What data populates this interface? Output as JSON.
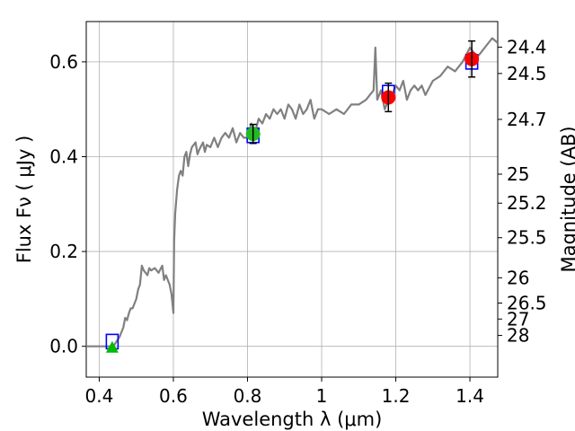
{
  "chart_data": {
    "type": "line",
    "xlabel": "Wavelength  λ (μm)",
    "ylabel": "Flux  Fν  ( μJy )",
    "ylabel_right": "Magnitude (AB)",
    "xlim": [
      0.365,
      1.475
    ],
    "ylim": [
      -0.065,
      0.685
    ],
    "grid": true,
    "x_ticks": [
      0.4,
      0.6,
      0.8,
      1.0,
      1.2,
      1.4
    ],
    "x_tick_labels": [
      "0.4",
      "0.6",
      "0.8",
      "1",
      "1.2",
      "1.4"
    ],
    "y_ticks": [
      0.0,
      0.2,
      0.4,
      0.6
    ],
    "y_tick_labels": [
      "0.0",
      "0.2",
      "0.4",
      "0.6"
    ],
    "right_ticks": [
      {
        "mag": 24.4,
        "label": "24.4"
      },
      {
        "mag": 24.5,
        "label": "24.5"
      },
      {
        "mag": 24.7,
        "label": "24.7"
      },
      {
        "mag": 25.0,
        "label": "25"
      },
      {
        "mag": 25.2,
        "label": "25.2"
      },
      {
        "mag": 25.5,
        "label": "25.5"
      },
      {
        "mag": 26.0,
        "label": "26"
      },
      {
        "mag": 26.5,
        "label": "26.5"
      },
      {
        "mag": 27.0,
        "label": "27"
      },
      {
        "mag": 28.0,
        "label": "28"
      }
    ],
    "series": [
      {
        "kind": "line",
        "color": "#808080",
        "x": [
          0.365,
          0.41,
          0.43,
          0.44,
          0.455,
          0.465,
          0.47,
          0.475,
          0.48,
          0.485,
          0.49,
          0.5,
          0.505,
          0.51,
          0.515,
          0.52,
          0.53,
          0.535,
          0.54,
          0.55,
          0.56,
          0.57,
          0.575,
          0.58,
          0.59,
          0.595,
          0.6,
          0.602,
          0.605,
          0.61,
          0.615,
          0.62,
          0.625,
          0.63,
          0.635,
          0.64,
          0.645,
          0.65,
          0.66,
          0.665,
          0.67,
          0.68,
          0.685,
          0.69,
          0.7,
          0.705,
          0.71,
          0.72,
          0.73,
          0.74,
          0.75,
          0.76,
          0.77,
          0.78,
          0.79,
          0.8,
          0.81,
          0.82,
          0.83,
          0.84,
          0.85,
          0.86,
          0.87,
          0.88,
          0.89,
          0.9,
          0.91,
          0.92,
          0.93,
          0.94,
          0.95,
          0.96,
          0.97,
          0.98,
          0.99,
          1.0,
          1.02,
          1.04,
          1.06,
          1.08,
          1.1,
          1.12,
          1.13,
          1.14,
          1.145,
          1.15,
          1.16,
          1.17,
          1.18,
          1.19,
          1.2,
          1.21,
          1.22,
          1.23,
          1.24,
          1.25,
          1.26,
          1.27,
          1.28,
          1.3,
          1.32,
          1.34,
          1.36,
          1.38,
          1.4,
          1.42,
          1.44,
          1.46,
          1.475
        ],
        "y": [
          0.0,
          0.0,
          0.0,
          0.002,
          0.02,
          0.04,
          0.06,
          0.055,
          0.07,
          0.08,
          0.08,
          0.1,
          0.12,
          0.13,
          0.17,
          0.16,
          0.15,
          0.165,
          0.16,
          0.165,
          0.155,
          0.17,
          0.14,
          0.15,
          0.13,
          0.11,
          0.07,
          0.22,
          0.28,
          0.33,
          0.36,
          0.37,
          0.36,
          0.4,
          0.41,
          0.38,
          0.405,
          0.42,
          0.43,
          0.405,
          0.415,
          0.43,
          0.41,
          0.425,
          0.42,
          0.43,
          0.44,
          0.42,
          0.44,
          0.45,
          0.44,
          0.46,
          0.43,
          0.45,
          0.44,
          0.44,
          0.47,
          0.45,
          0.48,
          0.47,
          0.49,
          0.48,
          0.5,
          0.49,
          0.5,
          0.48,
          0.51,
          0.5,
          0.48,
          0.51,
          0.49,
          0.5,
          0.52,
          0.48,
          0.5,
          0.5,
          0.49,
          0.5,
          0.49,
          0.51,
          0.51,
          0.52,
          0.53,
          0.54,
          0.63,
          0.52,
          0.54,
          0.5,
          0.52,
          0.53,
          0.55,
          0.54,
          0.56,
          0.52,
          0.54,
          0.55,
          0.54,
          0.55,
          0.53,
          0.56,
          0.57,
          0.59,
          0.58,
          0.6,
          0.63,
          0.61,
          0.63,
          0.65,
          0.64
        ]
      },
      {
        "kind": "open-square",
        "color": "#0000ff",
        "x": [
          0.435,
          0.815,
          1.18,
          1.405
        ],
        "y": [
          0.01,
          0.445,
          0.535,
          0.6
        ]
      },
      {
        "kind": "triangle",
        "color": "#00bb00",
        "x": [
          0.435
        ],
        "y": [
          -0.002
        ]
      },
      {
        "kind": "circle-errorbar",
        "color": "#22bb22",
        "x": [
          0.815
        ],
        "y": [
          0.448
        ],
        "err": [
          0.02
        ]
      },
      {
        "kind": "circle-errorbar",
        "color": "#ff0000",
        "x": [
          1.18,
          1.405
        ],
        "y": [
          0.525,
          0.606
        ],
        "err": [
          0.03,
          0.038
        ]
      }
    ]
  }
}
